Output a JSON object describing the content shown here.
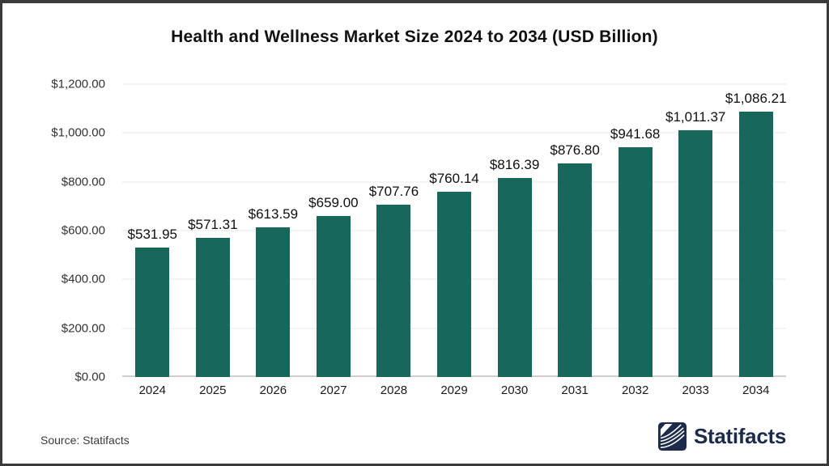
{
  "title": "Health and Wellness Market Size 2024 to 2034 (USD Billion)",
  "chart_data": {
    "type": "bar",
    "title": "Health and Wellness Market Size 2024 to 2034 (USD Billion)",
    "xlabel": "",
    "ylabel": "",
    "categories": [
      "2024",
      "2025",
      "2026",
      "2027",
      "2028",
      "2029",
      "2030",
      "2031",
      "2032",
      "2033",
      "2034"
    ],
    "values": [
      531.95,
      571.31,
      613.59,
      659.0,
      707.76,
      760.14,
      816.39,
      876.8,
      941.68,
      1011.37,
      1086.21
    ],
    "value_labels": [
      "$531.95",
      "$571.31",
      "$613.59",
      "$659.00",
      "$707.76",
      "$760.14",
      "$816.39",
      "$876.80",
      "$941.68",
      "$1,011.37",
      "$1,086.21"
    ],
    "ylim": [
      0,
      1200
    ],
    "yticks": [
      0,
      200,
      400,
      600,
      800,
      1000,
      1200
    ],
    "ytick_labels": [
      "$0.00",
      "$200.00",
      "$400.00",
      "$600.00",
      "$800.00",
      "$1,000.00",
      "$1,200.00"
    ],
    "grid": true,
    "legend": false,
    "bar_color": "#17685B"
  },
  "footer": {
    "source": "Source: Statifacts",
    "brand": "Statifacts",
    "logo_icon": "statifacts-waves-icon"
  },
  "colors": {
    "bar": "#17685B",
    "brand_navy": "#1c2b4a",
    "frame_border": "#3a3a3a",
    "gridline": "#f4f4f4",
    "axis_line": "#cfcfcf"
  }
}
